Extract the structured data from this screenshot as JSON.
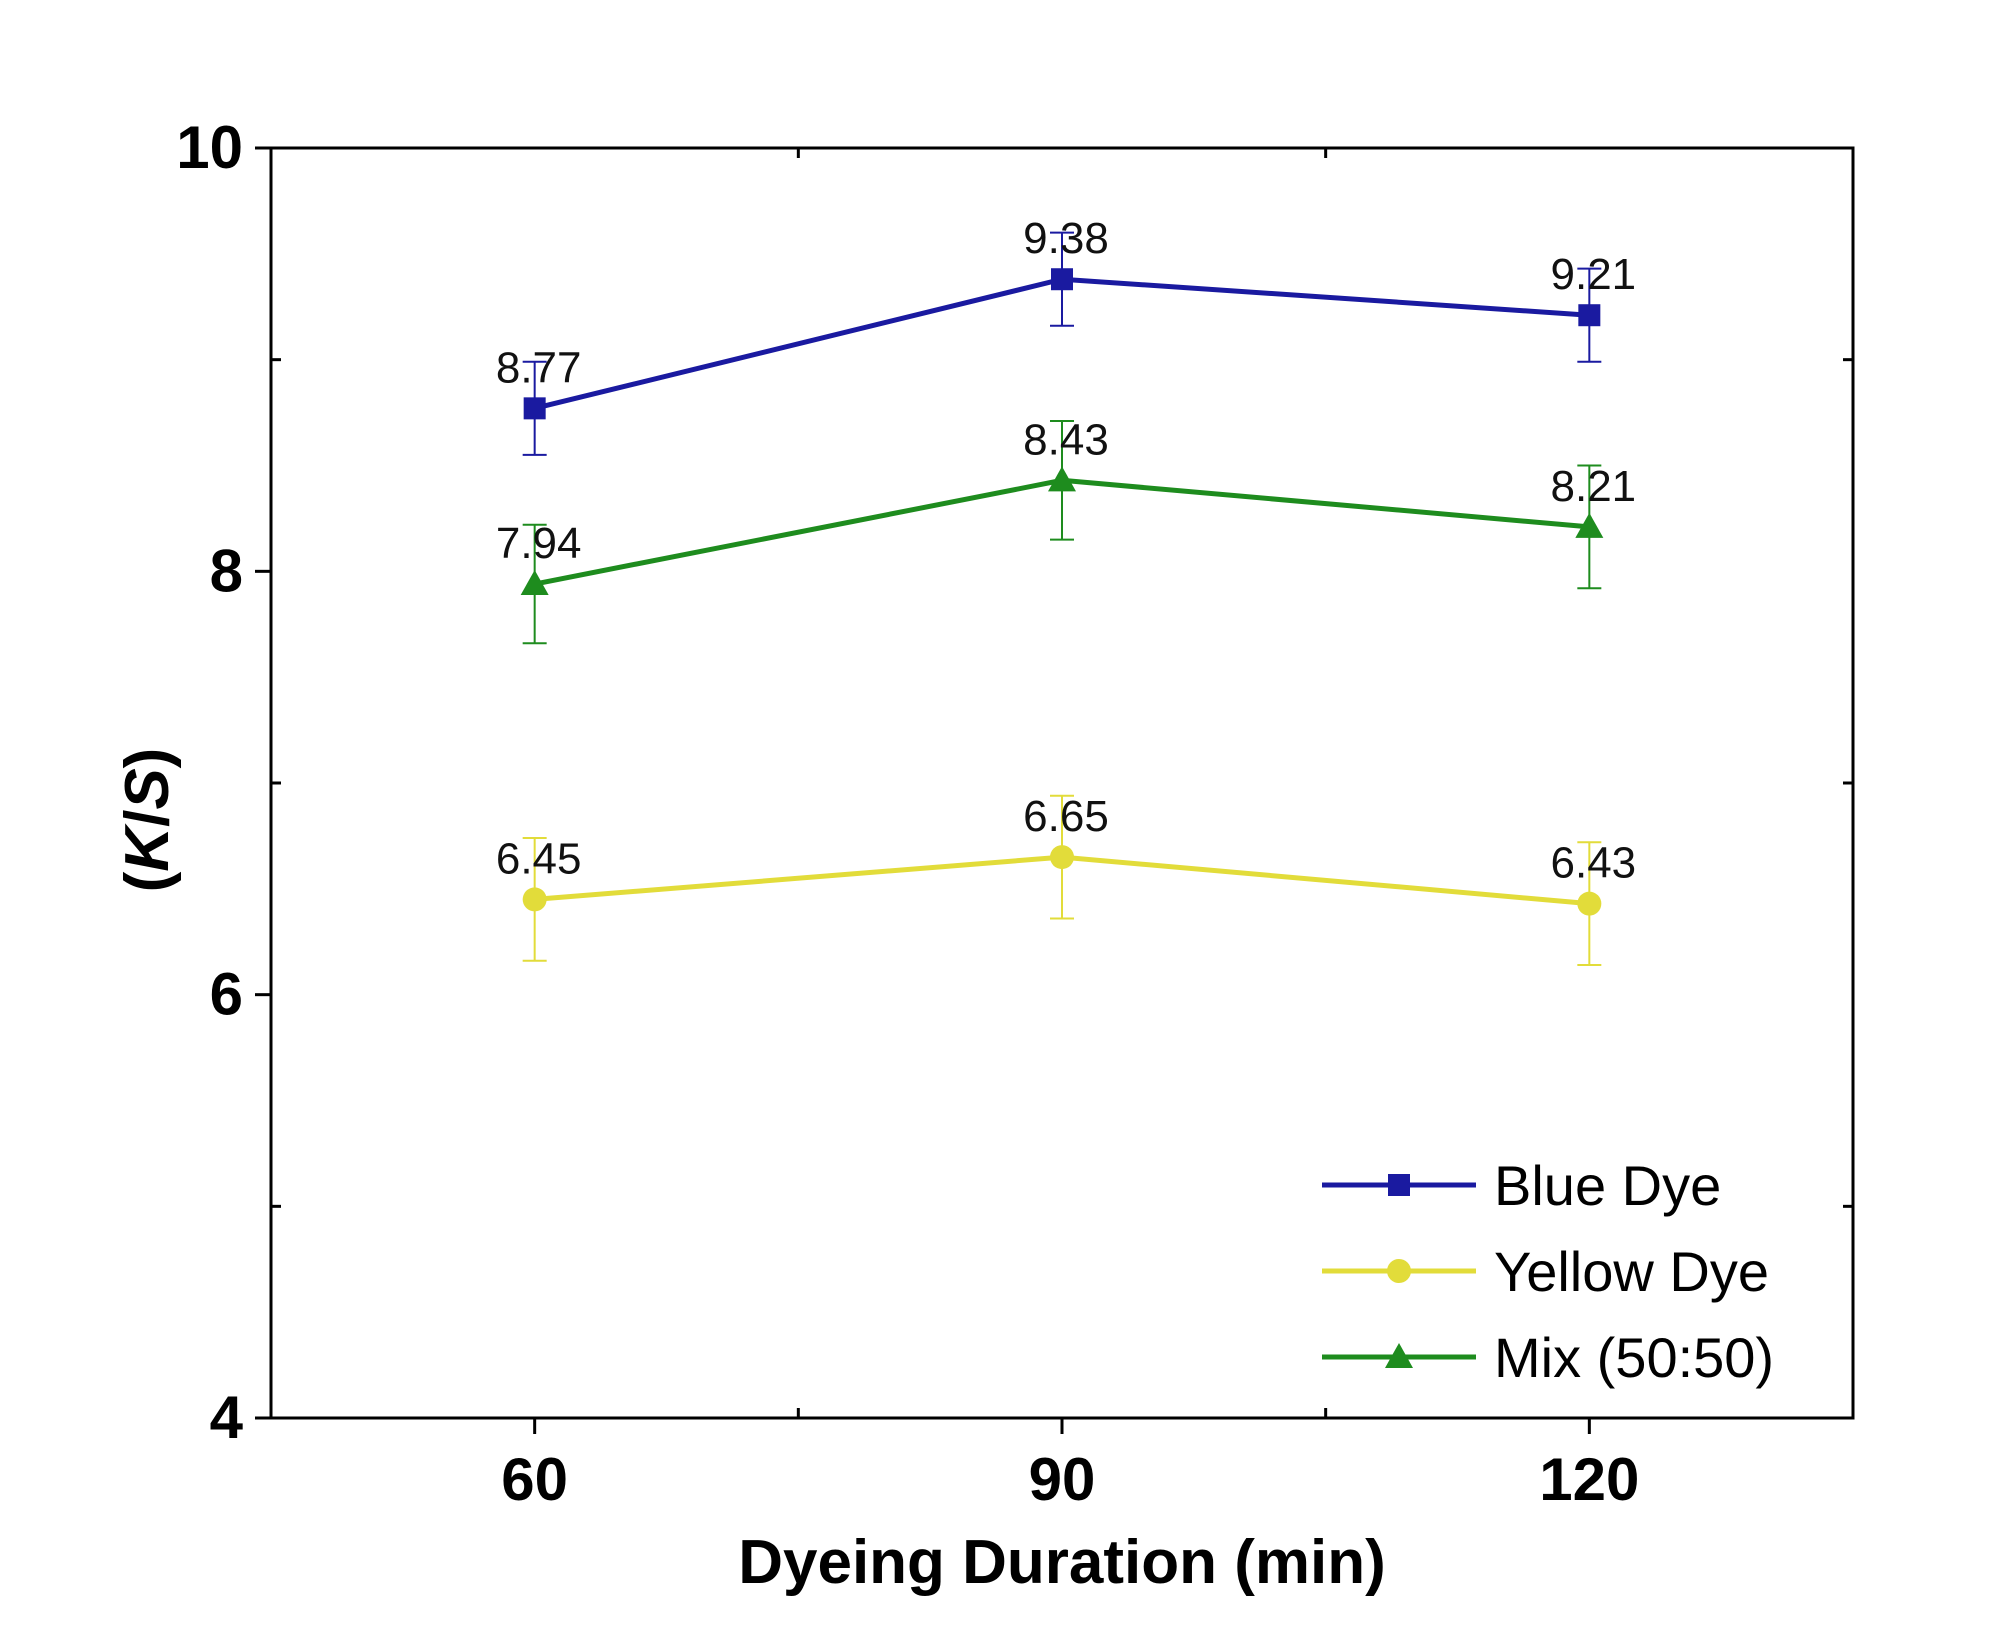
{
  "chart_data": {
    "type": "line",
    "title": "",
    "xlabel": "Dyeing Duration (min)",
    "ylabel_parts": [
      "(",
      "K",
      "/",
      "S",
      ")"
    ],
    "x": [
      60,
      90,
      120
    ],
    "x_tick_labels": [
      "60",
      "90",
      "120"
    ],
    "xlim": [
      45,
      135
    ],
    "ylim": [
      4,
      10
    ],
    "y_ticks": [
      4,
      6,
      8,
      10
    ],
    "y_tick_labels": [
      "4",
      "6",
      "8",
      "10"
    ],
    "grid": false,
    "legend_position": "bottom-right",
    "series": [
      {
        "name": "Blue Dye",
        "color": "#1a1aa0",
        "marker": "square",
        "values": [
          8.77,
          9.38,
          9.21
        ],
        "labels": [
          "8.77",
          "9.38",
          "9.21"
        ],
        "errors": [
          0.22,
          0.22,
          0.22
        ]
      },
      {
        "name": "Yellow Dye",
        "color": "#e2dc3a",
        "marker": "circle",
        "values": [
          6.45,
          6.65,
          6.43
        ],
        "labels": [
          "6.45",
          "6.65",
          "6.43"
        ],
        "errors": [
          0.29,
          0.29,
          0.29
        ]
      },
      {
        "name": "Mix (50:50)",
        "color": "#1e8c1e",
        "marker": "triangle",
        "values": [
          7.94,
          8.43,
          8.21
        ],
        "labels": [
          "7.94",
          "8.43",
          "8.21"
        ],
        "errors": [
          0.28,
          0.28,
          0.29
        ]
      }
    ]
  }
}
